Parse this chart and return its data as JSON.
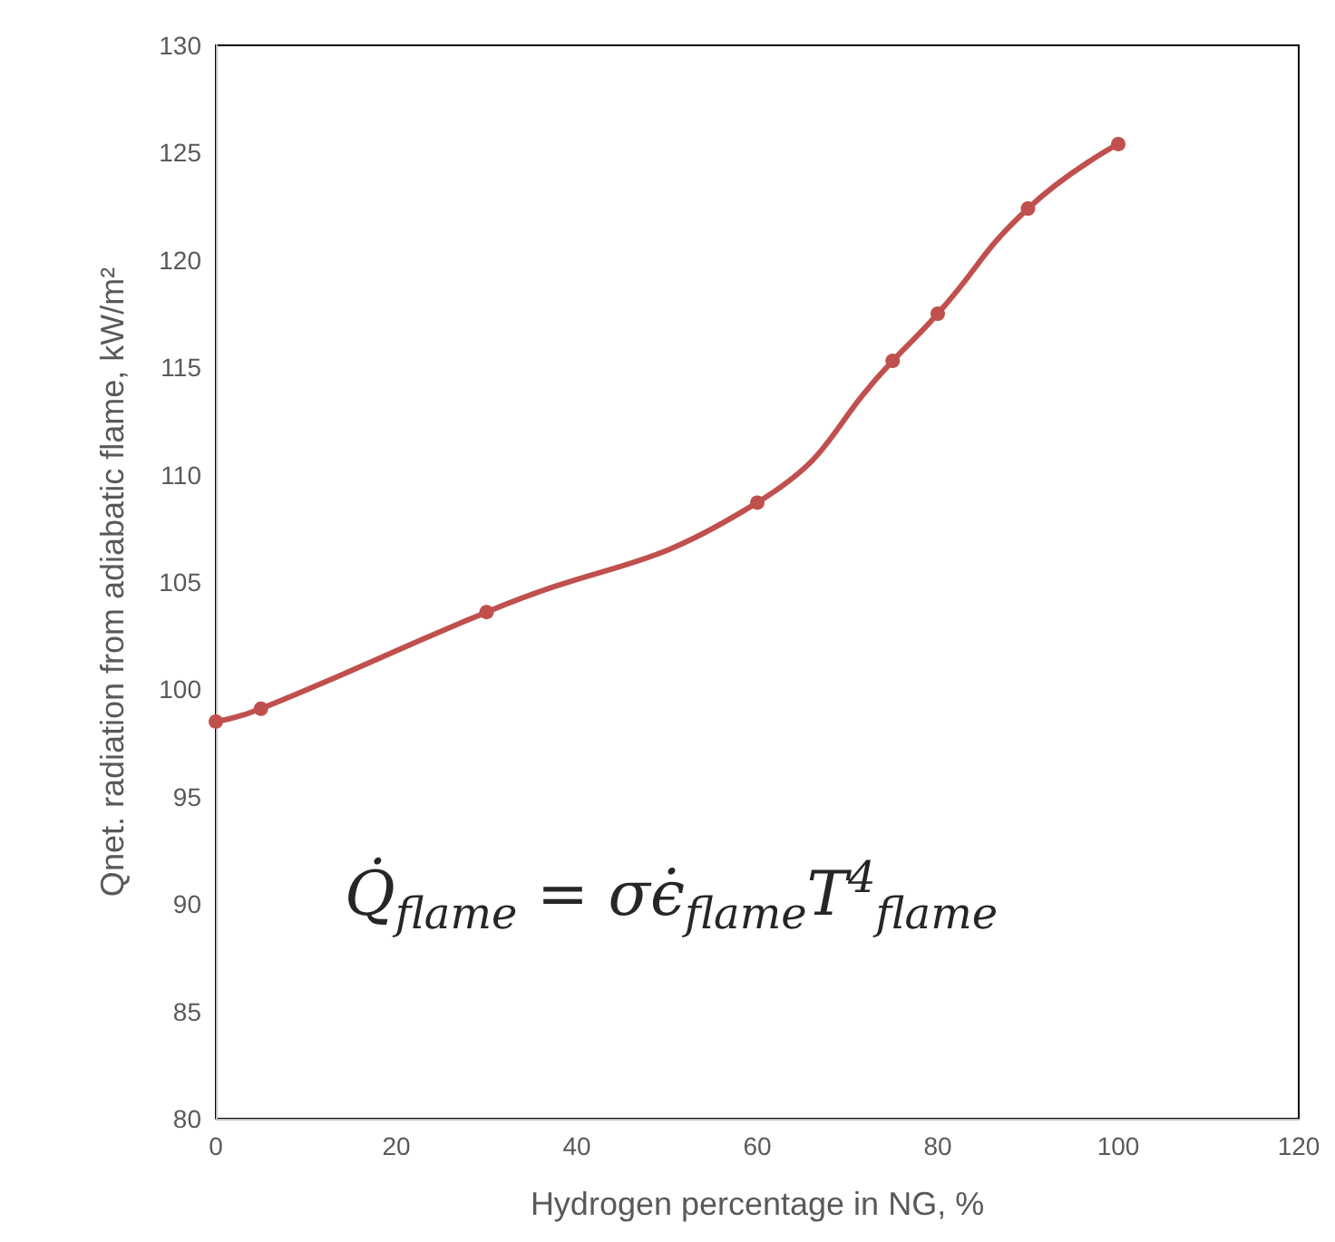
{
  "chart_data": {
    "type": "line",
    "xlabel": "Hydrogen percentage in NG, %",
    "ylabel": "Qnet. radiation from adiabatic flame, kW/m²",
    "x": [
      0,
      5,
      30,
      60,
      75,
      80,
      90,
      100
    ],
    "series": [
      {
        "color": "#c0504d",
        "values": [
          98.5,
          99.1,
          103.6,
          108.7,
          115.3,
          117.5,
          122.4,
          125.4
        ]
      }
    ],
    "xlim": [
      0,
      120
    ],
    "xticks": [
      0,
      20,
      40,
      60,
      80,
      100,
      120
    ],
    "ylim": [
      80,
      130
    ],
    "yticks": [
      80,
      85,
      90,
      95,
      100,
      105,
      110,
      115,
      120,
      125,
      130
    ],
    "grid": false,
    "marker": "circle",
    "line_style": "solid",
    "annotations": [
      "Q̇$_{flame}$ = σϵ̇$_{flame}$T$^{4}$$_{flame}$"
    ]
  }
}
